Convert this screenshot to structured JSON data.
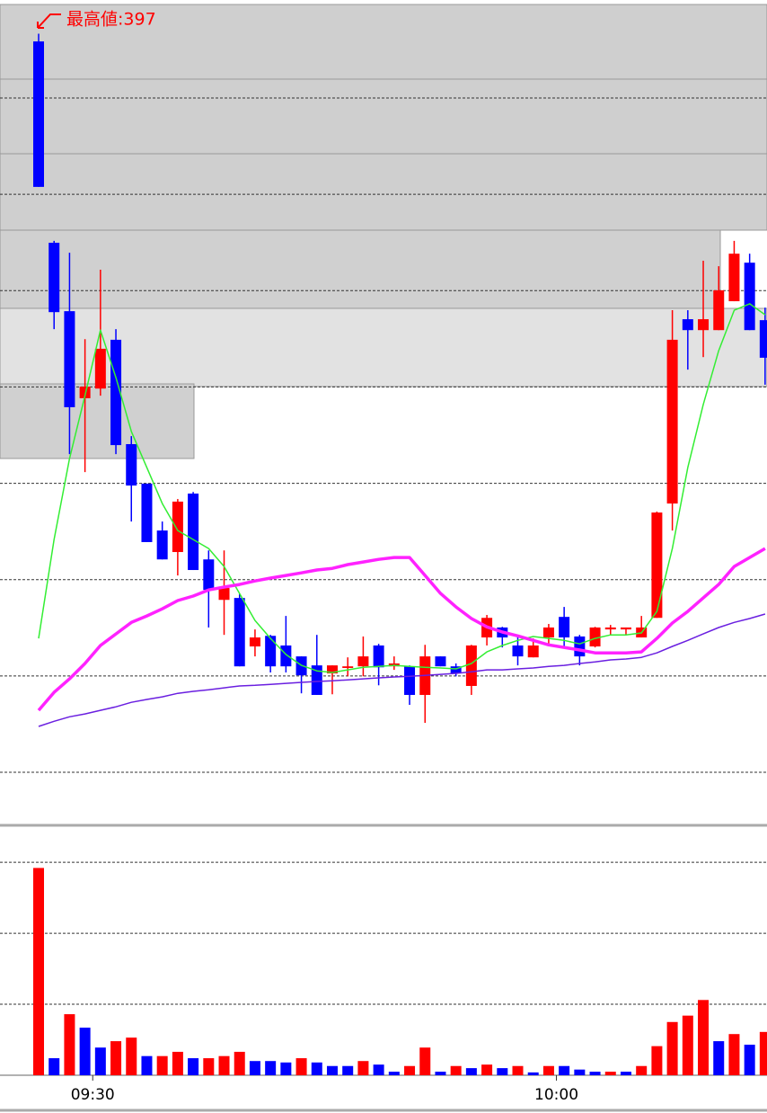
{
  "chart_data": {
    "type": "candlestick",
    "high_label": "最高値:397",
    "categories": [
      null,
      null,
      null,
      "09:30",
      null,
      null,
      null,
      null,
      null,
      null,
      null,
      null,
      null,
      null,
      null,
      null,
      null,
      null,
      null,
      null,
      null,
      null,
      null,
      null,
      null,
      null,
      null,
      null,
      null,
      null,
      null,
      null,
      null,
      "10:00",
      null,
      null,
      null,
      null,
      null,
      null,
      null,
      null,
      null,
      null,
      null,
      null,
      null,
      null
    ],
    "ohlc": [
      [
        396.76,
        397,
        392.23,
        392.23
      ],
      [
        390.49,
        390.55,
        387.8,
        388.33
      ],
      [
        388.36,
        390.18,
        383.91,
        385.37
      ],
      [
        385.65,
        387.49,
        383.35,
        386.01
      ],
      [
        385.95,
        389.65,
        385.73,
        387.19
      ],
      [
        387.47,
        387.8,
        383.91,
        384.19
      ],
      [
        384.22,
        384.47,
        381.81,
        382.93
      ],
      [
        382.99,
        382.99,
        381.17,
        381.17
      ],
      [
        381.53,
        381.81,
        380.63,
        380.63
      ],
      [
        380.86,
        382.51,
        380.13,
        382.43
      ],
      [
        382.68,
        382.73,
        380.3,
        380.3
      ],
      [
        380.63,
        380.91,
        378.51,
        379.68
      ],
      [
        379.37,
        380.91,
        378.28,
        379.74
      ],
      [
        379.43,
        379.57,
        377.3,
        377.3
      ],
      [
        377.92,
        378.45,
        377.61,
        378.2
      ],
      [
        378.25,
        378.28,
        377.11,
        377.3
      ],
      [
        377.95,
        378.87,
        377.11,
        377.3
      ],
      [
        377.61,
        377.61,
        376.46,
        377.02
      ],
      [
        377.33,
        378.28,
        376.41,
        376.41
      ],
      [
        377.08,
        377.33,
        376.43,
        377.33
      ],
      [
        377.25,
        377.58,
        376.99,
        377.3
      ],
      [
        377.3,
        378.23,
        376.99,
        377.61
      ],
      [
        377.95,
        378.0,
        376.71,
        377.27
      ],
      [
        377.3,
        377.61,
        377.19,
        377.39
      ],
      [
        377.3,
        377.33,
        376.1,
        376.41
      ],
      [
        376.41,
        377.97,
        375.54,
        377.61
      ],
      [
        377.61,
        377.61,
        377.3,
        377.3
      ],
      [
        377.3,
        377.39,
        376.99,
        377.08
      ],
      [
        376.69,
        377.97,
        376.41,
        377.95
      ],
      [
        378.2,
        378.9,
        377.95,
        378.81
      ],
      [
        378.51,
        378.53,
        377.89,
        378.2
      ],
      [
        377.95,
        378.28,
        377.33,
        377.61
      ],
      [
        377.58,
        378.17,
        377.58,
        377.95
      ],
      [
        378.2,
        378.62,
        377.97,
        378.51
      ],
      [
        378.84,
        379.15,
        377.89,
        378.2
      ],
      [
        378.23,
        378.28,
        377.33,
        377.61
      ],
      [
        377.92,
        378.53,
        377.89,
        378.51
      ],
      [
        378.45,
        378.59,
        378.28,
        378.51
      ],
      [
        378.45,
        378.51,
        378.28,
        378.51
      ],
      [
        378.2,
        378.87,
        378.2,
        378.51
      ],
      [
        378.81,
        382.12,
        378.81,
        382.09
      ],
      [
        382.37,
        388.39,
        381.53,
        387.47
      ],
      [
        388.11,
        388.39,
        386.54,
        387.77
      ],
      [
        387.77,
        389.93,
        386.93,
        388.11
      ],
      [
        387.77,
        389.76,
        387.77,
        389.01
      ],
      [
        388.67,
        390.55,
        388.67,
        390.15
      ],
      [
        389.87,
        390.15,
        387.77,
        387.77
      ],
      [
        388.08,
        388.47,
        386.07,
        386.91
      ]
    ],
    "up_color": "#ff0000",
    "down_color": "#0000ff",
    "lines": [
      {
        "color": "#33ee33",
        "width": 1.5,
        "values": [
          378.17,
          381.25,
          383.77,
          385.73,
          387.77,
          386.29,
          384.61,
          383.49,
          382.37,
          381.53,
          381.25,
          380.97,
          380.41,
          379.57,
          378.73,
          378.17,
          377.67,
          377.33,
          377.16,
          377.11,
          377.19,
          377.27,
          377.3,
          377.33,
          377.3,
          377.27,
          377.25,
          377.22,
          377.39,
          377.75,
          377.95,
          378.11,
          378.23,
          378.17,
          378.11,
          378.0,
          378.17,
          378.28,
          378.28,
          378.34,
          379.01,
          380.97,
          383.49,
          385.45,
          387.13,
          388.39,
          388.59,
          388.25
        ]
      },
      {
        "color": "#ff22ff",
        "width": 3.5,
        "values": [
          375.93,
          376.49,
          376.91,
          377.39,
          377.95,
          378.31,
          378.67,
          378.87,
          379.09,
          379.35,
          379.49,
          379.68,
          379.77,
          379.85,
          379.96,
          380.05,
          380.13,
          380.21,
          380.3,
          380.35,
          380.47,
          380.55,
          380.63,
          380.69,
          380.69,
          380.13,
          379.57,
          379.15,
          378.79,
          378.53,
          378.37,
          378.25,
          378.11,
          377.97,
          377.89,
          377.81,
          377.72,
          377.72,
          377.72,
          377.75,
          378.17,
          378.65,
          379.01,
          379.43,
          379.85,
          380.41,
          380.69,
          380.97
        ]
      },
      {
        "color": "#6a1fe0",
        "width": 1.5,
        "values": [
          375.43,
          375.59,
          375.73,
          375.82,
          375.93,
          376.04,
          376.18,
          376.27,
          376.35,
          376.46,
          376.52,
          376.57,
          376.63,
          376.69,
          376.71,
          376.74,
          376.77,
          376.8,
          376.83,
          376.85,
          376.88,
          376.91,
          376.94,
          376.97,
          376.99,
          377.02,
          377.05,
          377.08,
          377.13,
          377.19,
          377.19,
          377.22,
          377.25,
          377.3,
          377.33,
          377.39,
          377.44,
          377.5,
          377.53,
          377.58,
          377.72,
          377.92,
          378.11,
          378.31,
          378.51,
          378.67,
          378.79,
          378.93
        ]
      }
    ],
    "ylim": [
      372.35,
      397.91
    ],
    "ygrid": [
      395,
      392,
      389,
      386,
      383,
      380,
      377,
      374
    ],
    "volume": {
      "values": [
        292,
        24,
        86,
        67,
        39,
        48,
        53,
        27,
        27,
        33,
        24,
        24,
        27,
        33,
        20,
        20,
        18,
        24,
        18,
        13,
        13,
        20,
        15,
        5,
        13,
        39,
        5,
        13,
        10,
        15,
        10,
        13,
        4,
        13,
        13,
        8,
        5,
        5,
        5,
        13,
        41,
        75,
        84,
        106,
        48,
        58,
        43,
        61
      ],
      "colors": [
        "#ff0000",
        "#0000ff",
        "#ff0000",
        "#0000ff",
        "#0000ff",
        "#ff0000",
        "#ff0000",
        "#0000ff",
        "#ff0000",
        "#ff0000",
        "#0000ff",
        "#ff0000",
        "#ff0000",
        "#ff0000",
        "#0000ff",
        "#0000ff",
        "#0000ff",
        "#ff0000",
        "#0000ff",
        "#0000ff",
        "#0000ff",
        "#ff0000",
        "#0000ff",
        "#0000ff",
        "#ff0000",
        "#ff0000",
        "#0000ff",
        "#ff0000",
        "#0000ff",
        "#ff0000",
        "#0000ff",
        "#ff0000",
        "#0000ff",
        "#ff0000",
        "#0000ff",
        "#0000ff",
        "#0000ff",
        "#ff0000",
        "#0000ff",
        "#ff0000",
        "#ff0000",
        "#ff0000",
        "#ff0000",
        "#ff0000",
        "#0000ff",
        "#ff0000",
        "#0000ff",
        "#ff0000"
      ],
      "ylim": [
        0,
        347
      ],
      "ygrid": [
        100,
        200,
        300
      ]
    }
  }
}
